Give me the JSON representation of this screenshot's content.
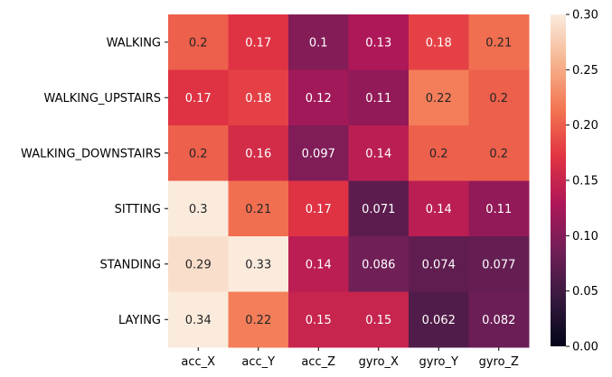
{
  "chart_data": {
    "type": "heatmap",
    "title": "",
    "xlabel": "",
    "ylabel": "",
    "x_categories": [
      "acc_X",
      "acc_Y",
      "acc_Z",
      "gyro_X",
      "gyro_Y",
      "gyro_Z"
    ],
    "y_categories": [
      "WALKING",
      "WALKING_UPSTAIRS",
      "WALKING_DOWNSTAIRS",
      "SITTING",
      "STANDING",
      "LAYING"
    ],
    "values": [
      [
        0.2,
        0.17,
        0.1,
        0.13,
        0.18,
        0.21
      ],
      [
        0.17,
        0.18,
        0.12,
        0.11,
        0.22,
        0.2
      ],
      [
        0.2,
        0.16,
        0.097,
        0.14,
        0.2,
        0.2
      ],
      [
        0.3,
        0.21,
        0.17,
        0.071,
        0.14,
        0.11
      ],
      [
        0.29,
        0.33,
        0.14,
        0.086,
        0.074,
        0.077
      ],
      [
        0.34,
        0.22,
        0.15,
        0.15,
        0.062,
        0.082
      ]
    ],
    "annotations": [
      [
        "0.2",
        "0.17",
        "0.1",
        "0.13",
        "0.18",
        "0.21"
      ],
      [
        "0.17",
        "0.18",
        "0.12",
        "0.11",
        "0.22",
        "0.2"
      ],
      [
        "0.2",
        "0.16",
        "0.097",
        "0.14",
        "0.2",
        "0.2"
      ],
      [
        "0.3",
        "0.21",
        "0.17",
        "0.071",
        "0.14",
        "0.11"
      ],
      [
        "0.29",
        "0.33",
        "0.14",
        "0.086",
        "0.074",
        "0.077"
      ],
      [
        "0.34",
        "0.22",
        "0.15",
        "0.15",
        "0.062",
        "0.082"
      ]
    ],
    "colorbar": {
      "vmin": 0.0,
      "vmax": 0.3,
      "ticks": [
        0.0,
        0.05,
        0.1,
        0.15,
        0.2,
        0.25,
        0.3
      ],
      "tick_labels": [
        "0.00",
        "0.05",
        "0.10",
        "0.15",
        "0.20",
        "0.25",
        "0.30"
      ],
      "colormap": "rocket"
    },
    "colormap_stops": [
      "#03051a",
      "#36193e",
      "#701f57",
      "#ad1759",
      "#e13342",
      "#f37651",
      "#f6b48f",
      "#faebdd"
    ],
    "annotation_text_colors": {
      "light": "#ffffff",
      "dark": "#262626"
    }
  }
}
